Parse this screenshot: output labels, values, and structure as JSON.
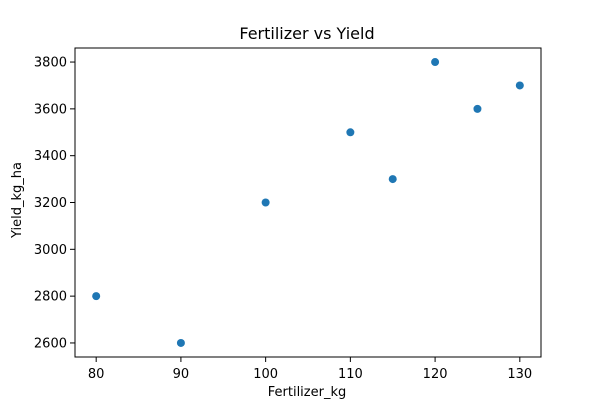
{
  "chart_data": {
    "type": "scatter",
    "title": "Fertilizer vs Yield",
    "xlabel": "Fertilizer_kg",
    "ylabel": "Yield_kg_ha",
    "xlim": [
      77.5,
      132.5
    ],
    "ylim": [
      2540,
      3860
    ],
    "xticks": [
      80,
      90,
      100,
      110,
      120,
      130
    ],
    "yticks": [
      2600,
      2800,
      3000,
      3200,
      3400,
      3600,
      3800
    ],
    "grid": false,
    "legend": "none",
    "series": [
      {
        "color": "#1f77b4",
        "points": [
          {
            "x": 80,
            "y": 2800
          },
          {
            "x": 90,
            "y": 2600
          },
          {
            "x": 100,
            "y": 3200
          },
          {
            "x": 110,
            "y": 3500
          },
          {
            "x": 115,
            "y": 3300
          },
          {
            "x": 120,
            "y": 3800
          },
          {
            "x": 125,
            "y": 3600
          },
          {
            "x": 130,
            "y": 3700
          }
        ]
      }
    ]
  }
}
